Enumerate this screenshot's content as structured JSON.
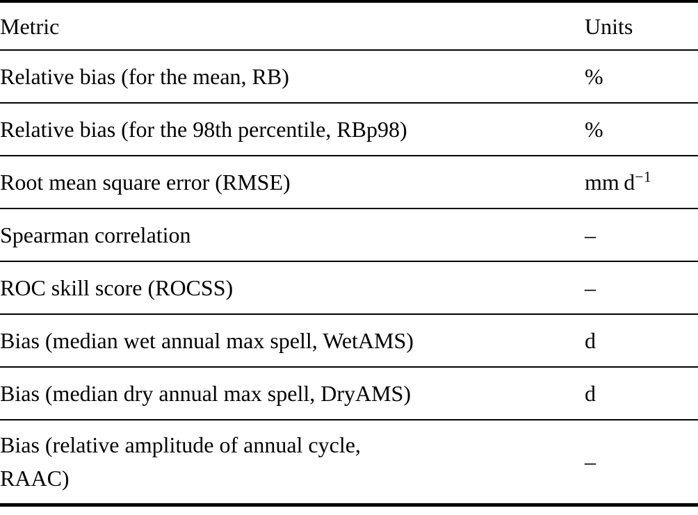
{
  "colors": {
    "background": "#ffffff",
    "text": "#000000",
    "rule": "#000000"
  },
  "table": {
    "headers": {
      "metric": "Metric",
      "units": "Units"
    },
    "rows": [
      {
        "metric": "Relative bias (for the mean, RB)",
        "unit": "%",
        "unit_sup": ""
      },
      {
        "metric": "Relative bias (for the 98th percentile, RBp98)",
        "unit": "%",
        "unit_sup": ""
      },
      {
        "metric": "Root mean square error (RMSE)",
        "unit": "mm d",
        "unit_sup": "−1"
      },
      {
        "metric": "Spearman correlation",
        "unit": "–",
        "unit_sup": ""
      },
      {
        "metric": "ROC skill score (ROCSS)",
        "unit": "–",
        "unit_sup": ""
      },
      {
        "metric": "Bias (median wet annual max spell, WetAMS)",
        "unit": "d",
        "unit_sup": ""
      },
      {
        "metric": "Bias (median dry annual max spell, DryAMS)",
        "unit": "d",
        "unit_sup": ""
      },
      {
        "metric": "Bias (relative amplitude of annual cycle,\nRAAC)",
        "unit": "–",
        "unit_sup": ""
      }
    ]
  }
}
